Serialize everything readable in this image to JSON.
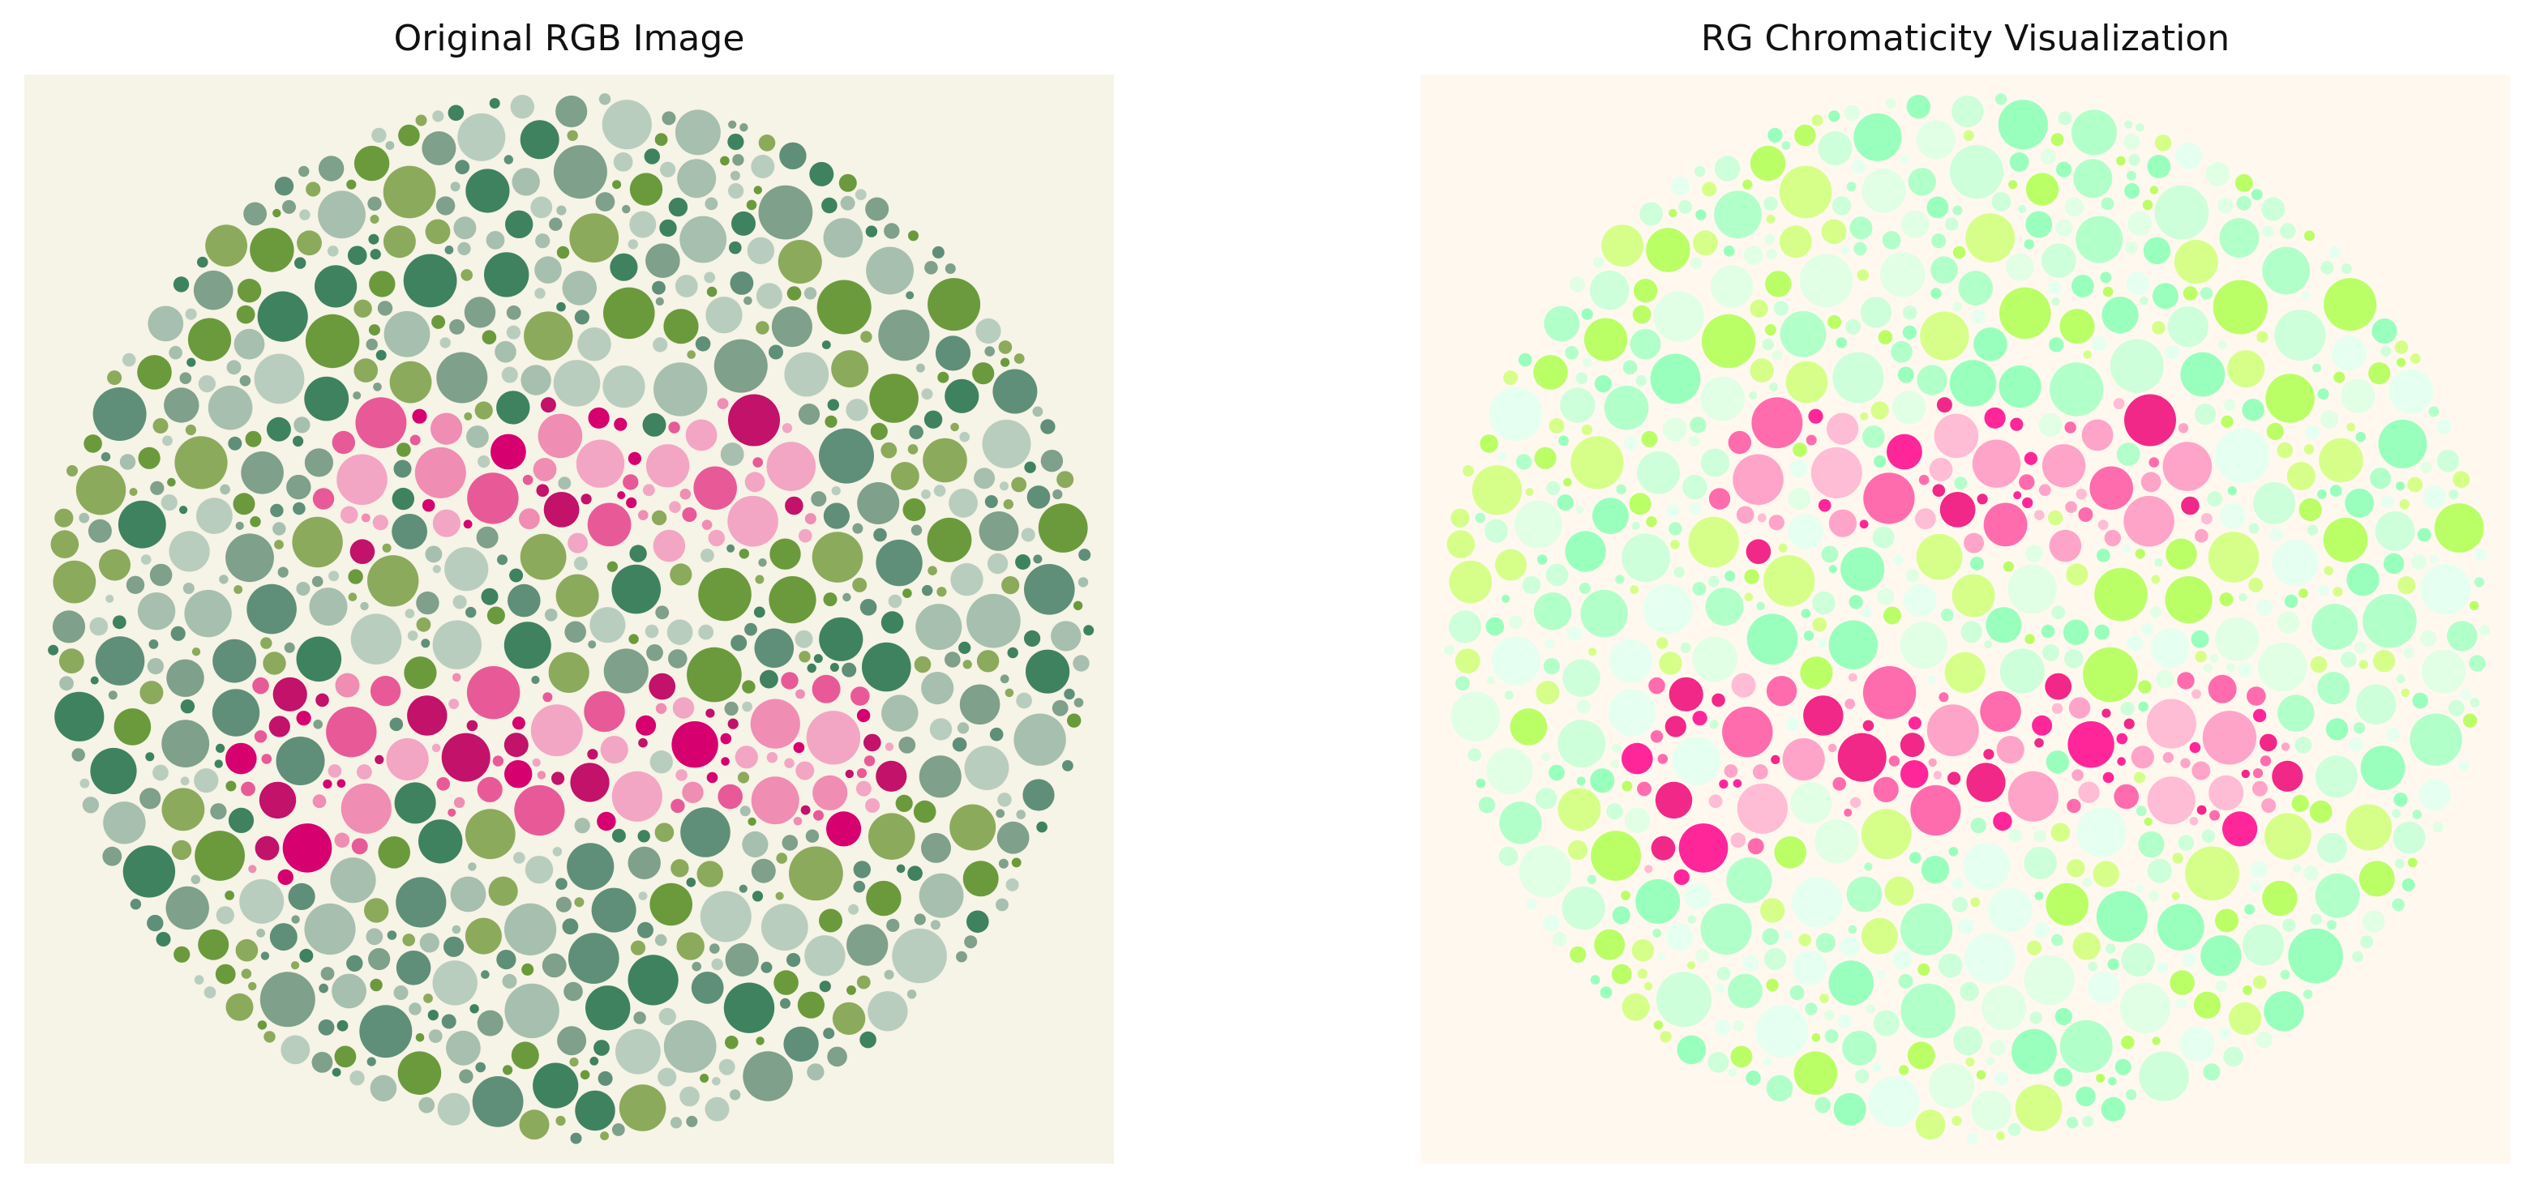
{
  "panels": [
    {
      "title": "Original RGB Image",
      "plate_text": [
        "non",
        "gene"
      ],
      "colors": {
        "background": "#f6f3e7",
        "figure": [
          "#d6006f",
          "#e85a97",
          "#f2a6c4",
          "#c2126a",
          "#f08db3"
        ],
        "ground": [
          "#7fa08a",
          "#a7bfae",
          "#3f8260",
          "#6b9a3c",
          "#8caa5b",
          "#5f8f78",
          "#b9cdbf"
        ]
      }
    },
    {
      "title": "RG Chromaticity Visualization",
      "plate_text": [
        "non",
        "gene"
      ],
      "colors": {
        "background": "#fff8ee",
        "figure": [
          "#ff1493",
          "#ff5fa8",
          "#ff9cc6",
          "#f0167f",
          "#ffb6d3"
        ],
        "ground": [
          "#c8ffd8",
          "#aaffc6",
          "#ddffe4",
          "#b4ff5a",
          "#d2ff80",
          "#e3fff0",
          "#90ffb8"
        ]
      }
    }
  ]
}
